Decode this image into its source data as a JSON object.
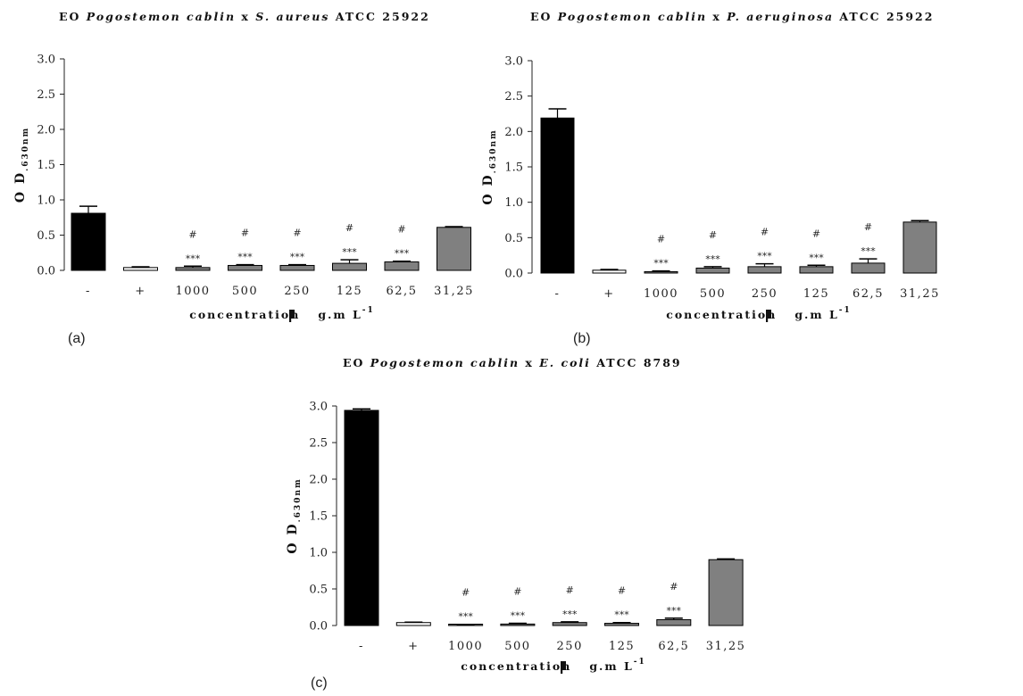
{
  "chart_data": [
    {
      "type": "bar",
      "panel_label": "(a)",
      "title_parts": [
        "EO ",
        "Pogostemon cablin",
        " x ",
        "S. aureus",
        " ATCC 25922"
      ],
      "ylabel": "O D",
      "ylabel_sub": ".630nm",
      "xlabel": "concentration",
      "xlabel_unit": "g.m L",
      "xlabel_sup": "-1",
      "categories": [
        "-",
        "+",
        "1000",
        "500",
        "250",
        "125",
        "62,5",
        "31,25"
      ],
      "values": [
        0.81,
        0.04,
        0.04,
        0.07,
        0.07,
        0.1,
        0.12,
        0.61
      ],
      "errors": [
        0.1,
        0.01,
        0.02,
        0.01,
        0.01,
        0.05,
        0.01,
        0.01
      ],
      "bar_colors": [
        "#000000",
        "#ffffff",
        "#808080",
        "#808080",
        "#808080",
        "#808080",
        "#808080",
        "#808080"
      ],
      "markers": [
        "",
        "",
        "***",
        "***",
        "***",
        "***",
        "***",
        ""
      ],
      "markers2": [
        "",
        "",
        "#",
        "#",
        "#",
        "#",
        "#",
        ""
      ],
      "yticks": [
        "0.0",
        "0.5",
        "1.0",
        "1.5",
        "2.0",
        "2.5",
        "3.0"
      ],
      "ylim": [
        0,
        3.0
      ]
    },
    {
      "type": "bar",
      "panel_label": "(b)",
      "title_parts": [
        "EO ",
        "Pogostemon cablin",
        "  x ",
        "P. aeruginosa",
        " ATCC 25922"
      ],
      "ylabel": "O D",
      "ylabel_sub": ".630nm",
      "xlabel": "concentration",
      "xlabel_unit": "g.m L",
      "xlabel_sup": "-1",
      "categories": [
        "-",
        "+",
        "1000",
        "500",
        "250",
        "125",
        "62,5",
        "31,25"
      ],
      "values": [
        2.19,
        0.04,
        0.02,
        0.07,
        0.09,
        0.09,
        0.14,
        0.72
      ],
      "errors": [
        0.13,
        0.01,
        0.01,
        0.02,
        0.04,
        0.02,
        0.06,
        0.02
      ],
      "bar_colors": [
        "#000000",
        "#ffffff",
        "#808080",
        "#808080",
        "#808080",
        "#808080",
        "#808080",
        "#808080"
      ],
      "markers": [
        "",
        "",
        "***",
        "***",
        "***",
        "***",
        "***",
        ""
      ],
      "markers2": [
        "",
        "",
        "#",
        "#",
        "#",
        "#",
        "#",
        ""
      ],
      "yticks": [
        "0.0",
        "0.5",
        "1.0",
        "1.5",
        "2.0",
        "2.5",
        "3.0"
      ],
      "ylim": [
        0,
        3.0
      ]
    },
    {
      "type": "bar",
      "panel_label": "(c)",
      "title_parts": [
        "EO ",
        "Pogostemon cablin",
        " x ",
        "E. coli",
        " ATCC 8789"
      ],
      "ylabel": "O D",
      "ylabel_sub": ".630nm",
      "xlabel": "concentration",
      "xlabel_unit": "g.m L",
      "xlabel_sup": "-1",
      "categories": [
        "-",
        "+",
        "1000",
        "500",
        "250",
        "125",
        "62,5",
        "31,25"
      ],
      "values": [
        2.94,
        0.04,
        0.01,
        0.02,
        0.04,
        0.03,
        0.08,
        0.9
      ],
      "errors": [
        0.02,
        0.005,
        0.005,
        0.01,
        0.01,
        0.01,
        0.02,
        0.01
      ],
      "bar_colors": [
        "#000000",
        "#ffffff",
        "#808080",
        "#808080",
        "#808080",
        "#808080",
        "#808080",
        "#808080"
      ],
      "markers": [
        "",
        "",
        "***",
        "***",
        "***",
        "***",
        "***",
        ""
      ],
      "markers2": [
        "",
        "",
        "#",
        "#",
        "#",
        "#",
        "#",
        ""
      ],
      "yticks": [
        "0.0",
        "0.5",
        "1.0",
        "1.5",
        "2.0",
        "2.5",
        "3.0"
      ],
      "ylim": [
        0,
        3.0
      ]
    }
  ]
}
